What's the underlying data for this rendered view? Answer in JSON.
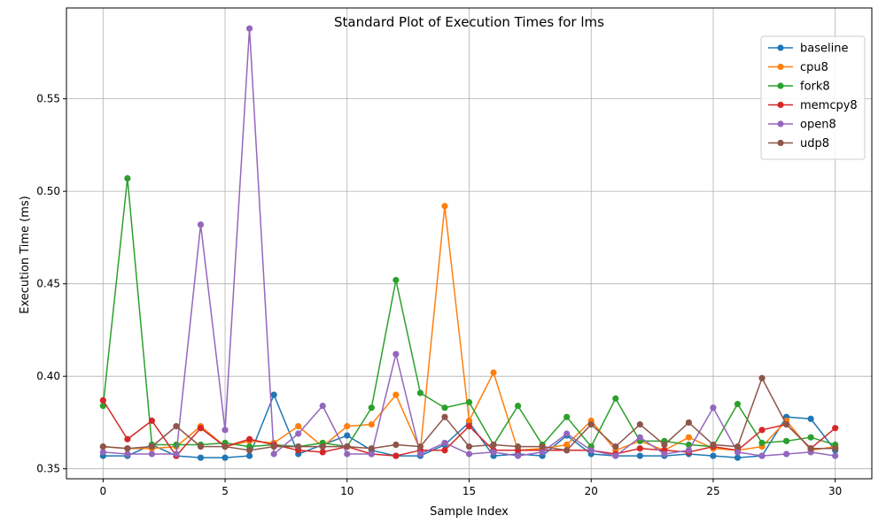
{
  "chart_data": {
    "type": "line",
    "title": "Standard Plot of Execution Times for lms",
    "xlabel": "Sample Index",
    "ylabel": "Execution Time (ms)",
    "xlim": [
      -1.5,
      31.5
    ],
    "ylim": [
      0.3446,
      0.5991
    ],
    "xticks": [
      0,
      5,
      10,
      15,
      20,
      25,
      30
    ],
    "yticks": [
      0.35,
      0.4,
      0.45,
      0.5,
      0.55
    ],
    "ytick_labels": [
      "0.35",
      "0.40",
      "0.45",
      "0.50",
      "0.55"
    ],
    "grid": true,
    "legend_position": "top-right",
    "x": [
      0,
      1,
      2,
      3,
      4,
      5,
      6,
      7,
      8,
      9,
      10,
      11,
      12,
      13,
      14,
      15,
      16,
      17,
      18,
      19,
      20,
      21,
      22,
      23,
      24,
      25,
      26,
      27,
      28,
      29,
      30
    ],
    "series": [
      {
        "name": "baseline",
        "color": "#1f77b4",
        "values": [
          0.357,
          0.357,
          0.363,
          0.357,
          0.356,
          0.356,
          0.357,
          0.39,
          0.358,
          0.363,
          0.368,
          0.36,
          0.357,
          0.357,
          0.363,
          0.375,
          0.357,
          0.358,
          0.357,
          0.368,
          0.358,
          0.357,
          0.357,
          0.357,
          0.358,
          0.357,
          0.356,
          0.357,
          0.378,
          0.377,
          0.36
        ]
      },
      {
        "name": "cpu8",
        "color": "#ff7f0e",
        "values": [
          0.362,
          0.361,
          0.361,
          0.362,
          0.373,
          0.362,
          0.365,
          0.364,
          0.373,
          0.362,
          0.373,
          0.374,
          0.39,
          0.36,
          0.492,
          0.376,
          0.402,
          0.36,
          0.361,
          0.363,
          0.376,
          0.36,
          0.365,
          0.36,
          0.367,
          0.361,
          0.36,
          0.362,
          0.376,
          0.36,
          0.362
        ]
      },
      {
        "name": "fork8",
        "color": "#2ca02c",
        "values": [
          0.384,
          0.507,
          0.363,
          0.363,
          0.363,
          0.364,
          0.362,
          0.363,
          0.362,
          0.364,
          0.362,
          0.383,
          0.452,
          0.391,
          0.383,
          0.386,
          0.363,
          0.384,
          0.363,
          0.378,
          0.362,
          0.388,
          0.365,
          0.365,
          0.363,
          0.362,
          0.385,
          0.364,
          0.365,
          0.367,
          0.363
        ]
      },
      {
        "name": "memcpy8",
        "color": "#d62728",
        "values": [
          0.387,
          0.366,
          0.376,
          0.357,
          0.372,
          0.362,
          0.366,
          0.363,
          0.36,
          0.359,
          0.362,
          0.358,
          0.357,
          0.36,
          0.36,
          0.373,
          0.36,
          0.36,
          0.36,
          0.36,
          0.36,
          0.358,
          0.361,
          0.36,
          0.359,
          0.362,
          0.36,
          0.371,
          0.374,
          0.361,
          0.372
        ]
      },
      {
        "name": "open8",
        "color": "#9467bd",
        "values": [
          0.359,
          0.358,
          0.358,
          0.358,
          0.482,
          0.371,
          0.588,
          0.358,
          0.369,
          0.384,
          0.358,
          0.358,
          0.412,
          0.358,
          0.364,
          0.358,
          0.359,
          0.357,
          0.359,
          0.369,
          0.36,
          0.357,
          0.367,
          0.358,
          0.36,
          0.383,
          0.359,
          0.357,
          0.358,
          0.359,
          0.357
        ]
      },
      {
        "name": "udp8",
        "color": "#8c564b",
        "values": [
          0.362,
          0.361,
          0.362,
          0.373,
          0.362,
          0.362,
          0.36,
          0.362,
          0.362,
          0.362,
          0.362,
          0.361,
          0.363,
          0.362,
          0.378,
          0.362,
          0.363,
          0.362,
          0.362,
          0.36,
          0.374,
          0.362,
          0.374,
          0.363,
          0.375,
          0.363,
          0.362,
          0.399,
          0.374,
          0.361,
          0.361
        ]
      }
    ]
  }
}
